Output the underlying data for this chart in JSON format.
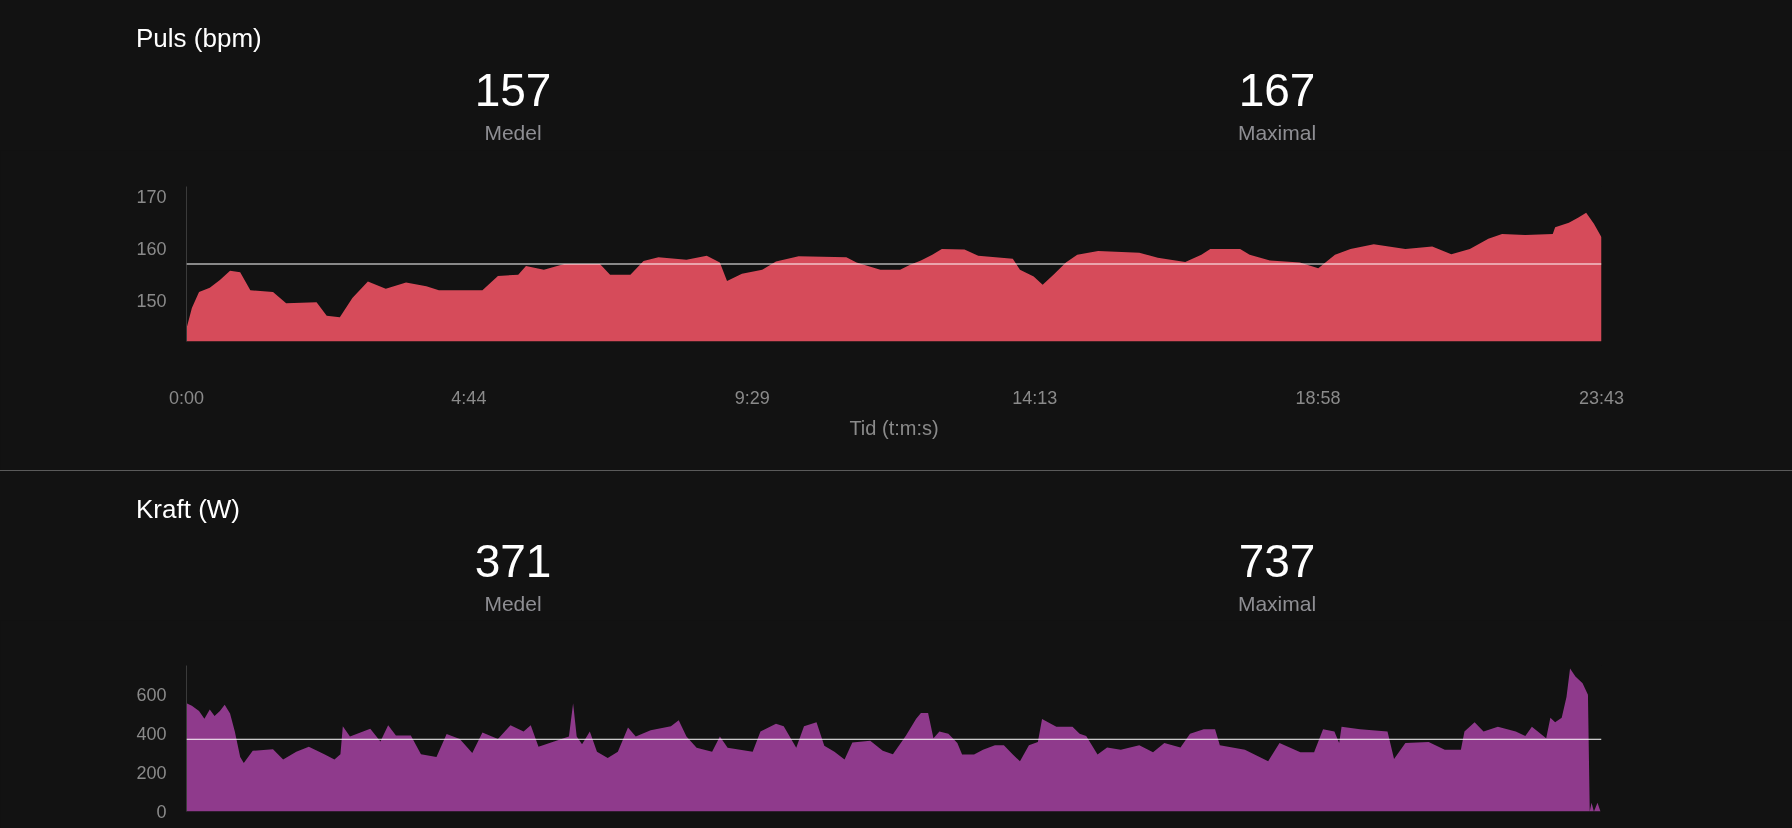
{
  "chart_data": [
    {
      "type": "area",
      "title": "Puls (bpm)",
      "xlabel": "Tid (t:m:s)",
      "annotations": [
        "157",
        "Medel",
        "167",
        "Maximal"
      ],
      "x": [
        0.0,
        0.09,
        0.21,
        0.39,
        0.56,
        0.73,
        0.9,
        1.07,
        1.45,
        1.67,
        2.18,
        2.35,
        2.57,
        2.78,
        3.04,
        3.34,
        3.68,
        4.02,
        4.23,
        4.96,
        5.22,
        5.56,
        5.69,
        5.99,
        6.33,
        6.93,
        7.1,
        7.44,
        7.66,
        7.91,
        8.38,
        8.72,
        8.94,
        9.06,
        9.31,
        9.65,
        9.88,
        10.26,
        11.06,
        11.23,
        11.63,
        11.96,
        12.12,
        12.31,
        12.5,
        12.66,
        13.04,
        13.27,
        13.85,
        13.97,
        14.2,
        14.35,
        14.54,
        14.74,
        14.93,
        15.28,
        15.97,
        16.28,
        16.74,
        17.01,
        17.16,
        17.66,
        17.82,
        18.16,
        18.66,
        18.97,
        19.25,
        19.51,
        19.9,
        20.43,
        20.88,
        21.2,
        21.51,
        21.82,
        22.05,
        22.44,
        22.9,
        22.94,
        23.17,
        23.33,
        23.46,
        23.59,
        23.717
      ],
      "series": [
        {
          "color": "#d64b5a",
          "values": [
            144.5,
            148.5,
            151.6,
            152.4,
            153.9,
            155.7,
            155.4,
            151.9,
            151.6,
            149.4,
            149.6,
            147.0,
            146.7,
            150.4,
            153.6,
            152.2,
            153.4,
            152.7,
            151.9,
            151.9,
            154.7,
            154.9,
            156.6,
            155.9,
            157.0,
            157.0,
            154.9,
            154.9,
            157.6,
            158.3,
            157.8,
            158.6,
            157.3,
            153.7,
            155.1,
            155.9,
            157.5,
            158.5,
            158.3,
            157.3,
            155.9,
            155.9,
            156.8,
            157.7,
            158.8,
            159.9,
            159.8,
            158.6,
            158.0,
            155.9,
            154.6,
            153.0,
            155.0,
            157.3,
            158.8,
            159.5,
            159.2,
            158.2,
            157.4,
            158.8,
            159.9,
            159.9,
            158.8,
            157.7,
            157.3,
            156.2,
            158.8,
            159.9,
            160.8,
            159.9,
            160.4,
            158.9,
            159.9,
            161.9,
            162.8,
            162.6,
            162.8,
            164.1,
            165.0,
            166.0,
            166.9,
            164.8,
            162.2
          ]
        }
      ],
      "xlim": [
        0,
        23.717
      ],
      "xticks": [
        {
          "value": 0,
          "label": "0:00"
        },
        {
          "value": 4.733,
          "label": "4:44"
        },
        {
          "value": 9.483,
          "label": "9:29"
        },
        {
          "value": 14.217,
          "label": "14:13"
        },
        {
          "value": 18.967,
          "label": "18:58"
        },
        {
          "value": 23.717,
          "label": "23:43"
        }
      ],
      "ylim": [
        142,
        172
      ],
      "yticks": [
        150,
        160,
        170
      ],
      "ref_lines": [
        {
          "axis": "y",
          "value": 157,
          "color": "#ffffff"
        }
      ],
      "grid": false
    },
    {
      "type": "area",
      "title": "Kraft (W)",
      "annotations": [
        "371",
        "Medel",
        "737",
        "Maximal"
      ],
      "x": [
        0.0,
        0.09,
        0.21,
        0.3,
        0.39,
        0.47,
        0.56,
        0.64,
        0.73,
        0.81,
        0.9,
        0.96,
        1.11,
        1.45,
        1.62,
        1.84,
        2.05,
        2.31,
        2.48,
        2.58,
        2.62,
        2.74,
        3.08,
        3.25,
        3.38,
        3.51,
        3.76,
        3.93,
        4.19,
        4.36,
        4.58,
        4.79,
        4.96,
        5.22,
        5.43,
        5.65,
        5.77,
        5.9,
        6.16,
        6.41,
        6.48,
        6.54,
        6.63,
        6.76,
        6.88,
        7.06,
        7.23,
        7.4,
        7.53,
        7.78,
        8.12,
        8.25,
        8.38,
        8.55,
        8.81,
        8.94,
        9.07,
        9.49,
        9.62,
        9.88,
        10.01,
        10.22,
        10.35,
        10.56,
        10.69,
        10.86,
        11.03,
        11.16,
        11.46,
        11.67,
        11.84,
        12.06,
        12.23,
        12.31,
        12.43,
        12.52,
        12.62,
        12.77,
        12.92,
        13.0,
        13.2,
        13.35,
        13.55,
        13.7,
        13.85,
        13.97,
        14.12,
        14.27,
        14.34,
        14.58,
        14.85,
        14.97,
        15.08,
        15.27,
        15.43,
        15.66,
        15.97,
        16.2,
        16.39,
        16.66,
        16.82,
        17.05,
        17.24,
        17.32,
        17.74,
        18.13,
        18.32,
        18.67,
        18.9,
        19.05,
        19.24,
        19.32,
        19.36,
        19.67,
        20.13,
        20.24,
        20.43,
        20.82,
        21.09,
        21.36,
        21.42,
        21.59,
        21.74,
        21.98,
        22.28,
        22.44,
        22.55,
        22.79,
        22.86,
        22.94,
        23.05,
        23.13,
        23.19,
        23.28,
        23.4,
        23.49,
        23.52,
        23.55,
        23.59,
        23.65,
        23.7
      ],
      "series": [
        {
          "color": "#8f3a8c",
          "values": [
            556,
            543,
            516,
            477,
            524,
            490,
            516,
            548,
            503,
            411,
            280,
            249,
            312,
            320,
            267,
            307,
            333,
            294,
            267,
            294,
            438,
            385,
            425,
            359,
            443,
            391,
            391,
            294,
            280,
            398,
            372,
            301,
            406,
            372,
            443,
            411,
            443,
            333,
            359,
            385,
            556,
            385,
            346,
            411,
            307,
            275,
            307,
            432,
            385,
            417,
            438,
            469,
            385,
            328,
            307,
            385,
            328,
            307,
            411,
            451,
            438,
            328,
            438,
            459,
            338,
            307,
            267,
            354,
            364,
            312,
            294,
            391,
            477,
            506,
            506,
            376,
            411,
            399,
            352,
            293,
            293,
            317,
            340,
            340,
            293,
            258,
            340,
            357,
            475,
            435,
            435,
            399,
            388,
            293,
            329,
            317,
            340,
            305,
            352,
            329,
            399,
            423,
            423,
            340,
            317,
            258,
            352,
            305,
            305,
            423,
            411,
            352,
            435,
            423,
            411,
            270,
            352,
            357,
            317,
            317,
            411,
            458,
            411,
            435,
            411,
            388,
            435,
            376,
            482,
            458,
            482,
            588,
            735,
            694,
            659,
            600,
            0,
            45,
            0,
            45,
            0
          ]
        }
      ],
      "xlim": [
        0,
        23.717
      ],
      "ylim": [
        0,
        750
      ],
      "yticks": [
        0,
        200,
        400,
        600
      ],
      "ref_lines": [
        {
          "axis": "y",
          "value": 371,
          "color": "#ffffff"
        }
      ],
      "tick_labels": "y",
      "grid": false
    }
  ]
}
